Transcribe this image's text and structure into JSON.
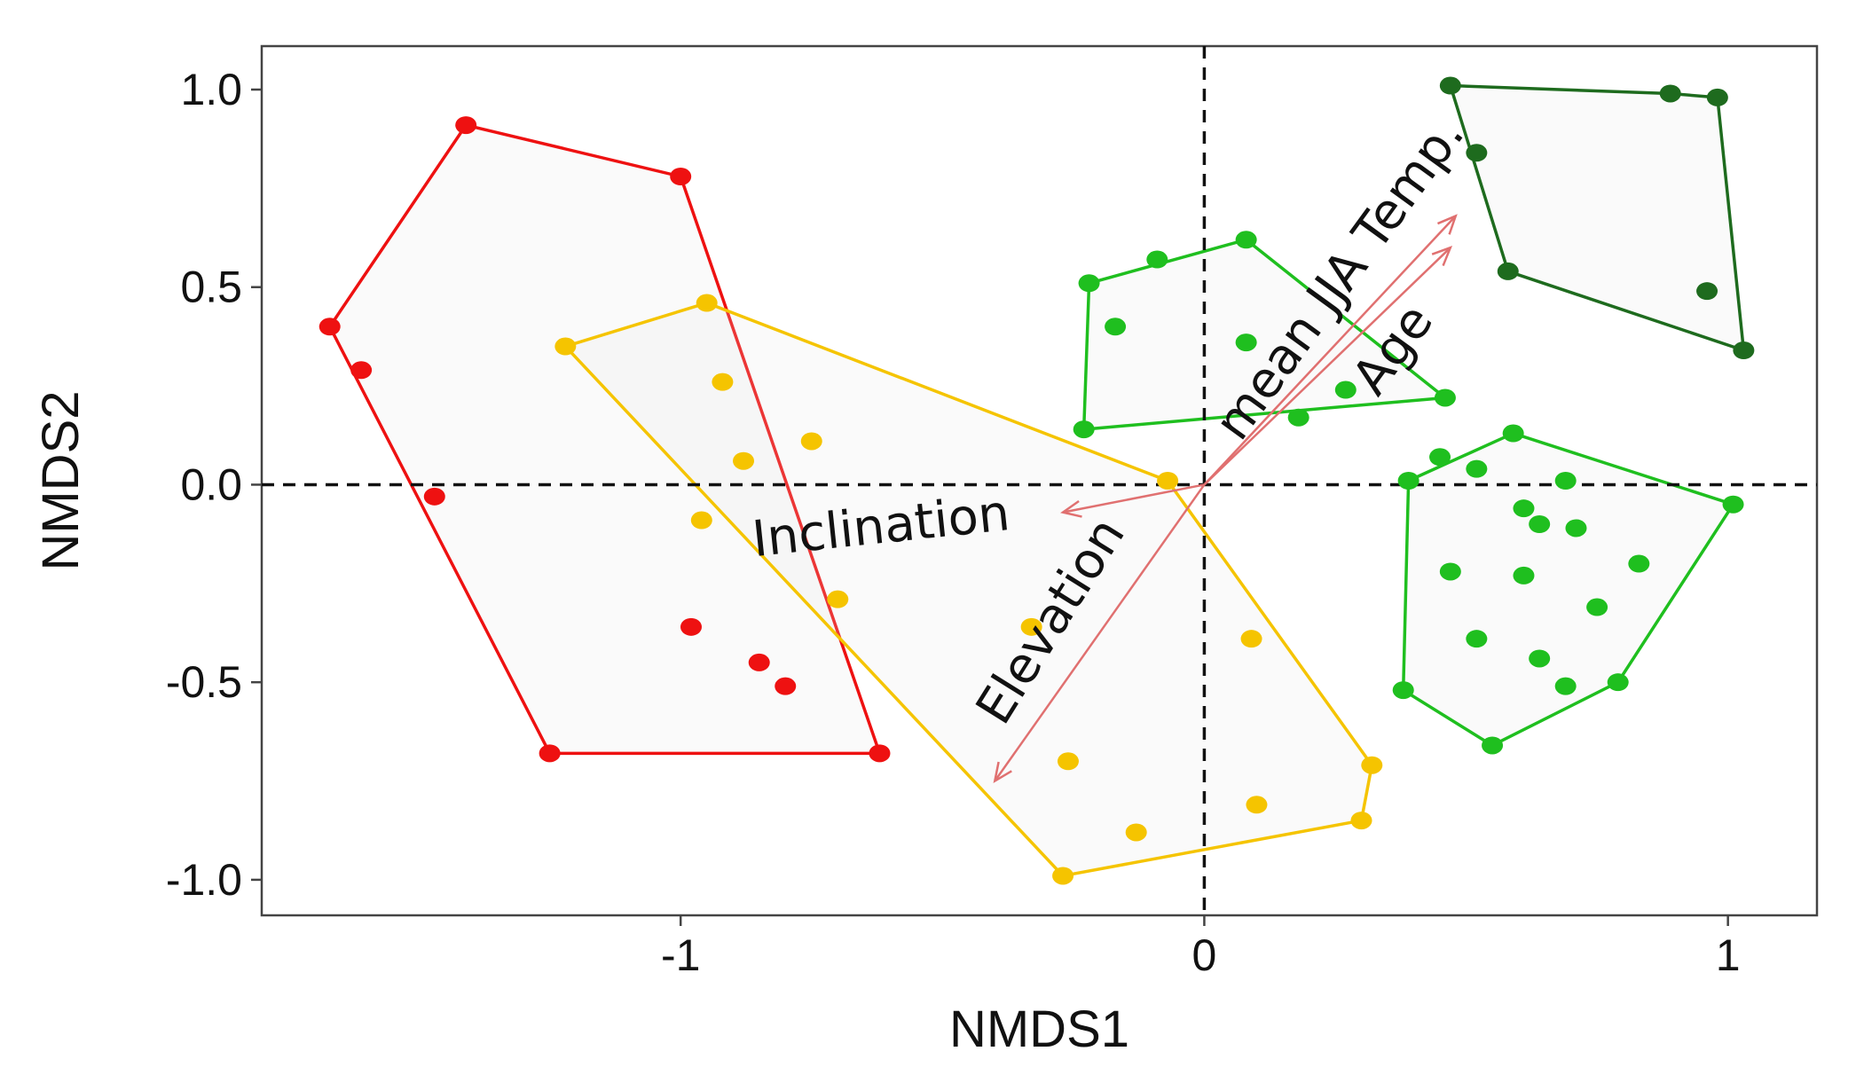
{
  "chart_data": {
    "type": "scatter",
    "xlabel": "NMDS1",
    "ylabel": "NMDS2",
    "xlim": [
      -1.8,
      1.17
    ],
    "ylim": [
      -1.09,
      1.11
    ],
    "x_ticks": [
      {
        "value": -1,
        "label": "-1"
      },
      {
        "value": 0,
        "label": "0"
      },
      {
        "value": 1,
        "label": "1"
      }
    ],
    "y_ticks": [
      {
        "value": 1.0,
        "label": "1.0"
      },
      {
        "value": 0.5,
        "label": "0.5"
      },
      {
        "value": 0.0,
        "label": "0.0"
      },
      {
        "value": -0.5,
        "label": "-0.5"
      },
      {
        "value": -1.0,
        "label": "-1.0"
      }
    ],
    "grid": false,
    "reference_lines": {
      "x": 0,
      "y": 0,
      "style": "dashed"
    },
    "series": [
      {
        "color": "#ee1111",
        "hull": [
          [
            -1.67,
            0.4
          ],
          [
            -1.41,
            0.91
          ],
          [
            -1.0,
            0.78
          ],
          [
            -0.62,
            -0.68
          ],
          [
            -1.25,
            -0.68
          ]
        ],
        "points": [
          [
            -1.67,
            0.4
          ],
          [
            -1.41,
            0.91
          ],
          [
            -1.0,
            0.78
          ],
          [
            -0.62,
            -0.68
          ],
          [
            -1.25,
            -0.68
          ],
          [
            -1.61,
            0.29
          ],
          [
            -1.47,
            -0.03
          ],
          [
            -0.98,
            -0.36
          ],
          [
            -0.85,
            -0.45
          ],
          [
            -0.8,
            -0.51
          ]
        ]
      },
      {
        "color": "#f5c400",
        "hull": [
          [
            -1.22,
            0.35
          ],
          [
            -0.95,
            0.46
          ],
          [
            -0.07,
            0.01
          ],
          [
            0.32,
            -0.71
          ],
          [
            0.3,
            -0.85
          ],
          [
            -0.27,
            -0.99
          ]
        ],
        "points": [
          [
            -1.22,
            0.35
          ],
          [
            -0.95,
            0.46
          ],
          [
            -0.07,
            0.01
          ],
          [
            0.32,
            -0.71
          ],
          [
            0.3,
            -0.85
          ],
          [
            -0.27,
            -0.99
          ],
          [
            -0.92,
            0.26
          ],
          [
            -0.88,
            0.06
          ],
          [
            -0.75,
            0.11
          ],
          [
            -0.96,
            -0.09
          ],
          [
            -0.7,
            -0.29
          ],
          [
            -0.33,
            -0.36
          ],
          [
            0.09,
            -0.39
          ],
          [
            -0.26,
            -0.7
          ],
          [
            -0.13,
            -0.88
          ],
          [
            0.1,
            -0.81
          ]
        ]
      },
      {
        "color": "#1fbf1f",
        "hull": [
          [
            -0.22,
            0.51
          ],
          [
            0.08,
            0.62
          ],
          [
            0.46,
            0.22
          ],
          [
            -0.23,
            0.14
          ]
        ],
        "points": [
          [
            -0.22,
            0.51
          ],
          [
            -0.09,
            0.57
          ],
          [
            0.08,
            0.62
          ],
          [
            0.46,
            0.22
          ],
          [
            -0.23,
            0.14
          ],
          [
            -0.17,
            0.4
          ],
          [
            0.08,
            0.36
          ],
          [
            0.27,
            0.24
          ],
          [
            0.18,
            0.17
          ]
        ]
      },
      {
        "color": "#1fbf1f",
        "hull": [
          [
            0.59,
            0.13
          ],
          [
            1.01,
            -0.05
          ],
          [
            0.79,
            -0.5
          ],
          [
            0.55,
            -0.66
          ],
          [
            0.38,
            -0.52
          ],
          [
            0.39,
            0.01
          ]
        ],
        "points": [
          [
            0.59,
            0.13
          ],
          [
            1.01,
            -0.05
          ],
          [
            0.79,
            -0.5
          ],
          [
            0.55,
            -0.66
          ],
          [
            0.38,
            -0.52
          ],
          [
            0.39,
            0.01
          ],
          [
            0.45,
            0.07
          ],
          [
            0.52,
            0.04
          ],
          [
            0.69,
            0.01
          ],
          [
            0.61,
            -0.06
          ],
          [
            0.64,
            -0.1
          ],
          [
            0.71,
            -0.11
          ],
          [
            0.47,
            -0.22
          ],
          [
            0.61,
            -0.23
          ],
          [
            0.83,
            -0.2
          ],
          [
            0.75,
            -0.31
          ],
          [
            0.52,
            -0.39
          ],
          [
            0.64,
            -0.44
          ],
          [
            0.69,
            -0.51
          ]
        ]
      },
      {
        "color": "#1e6b1e",
        "hull": [
          [
            0.47,
            1.01
          ],
          [
            0.89,
            0.99
          ],
          [
            0.98,
            0.98
          ],
          [
            1.03,
            0.34
          ],
          [
            0.58,
            0.54
          ]
        ],
        "points": [
          [
            0.47,
            1.01
          ],
          [
            0.89,
            0.99
          ],
          [
            0.98,
            0.98
          ],
          [
            1.03,
            0.34
          ],
          [
            0.58,
            0.54
          ],
          [
            0.52,
            0.84
          ],
          [
            0.96,
            0.49
          ]
        ]
      }
    ],
    "vectors": [
      {
        "label": "mean JJA Temp.",
        "x": 0.48,
        "y": 0.68
      },
      {
        "label": "Age",
        "x": 0.47,
        "y": 0.6
      },
      {
        "label": "Inclination",
        "x": -0.27,
        "y": -0.07
      },
      {
        "label": "Elevation",
        "x": -0.4,
        "y": -0.75
      }
    ],
    "vector_color": "#e07070"
  }
}
